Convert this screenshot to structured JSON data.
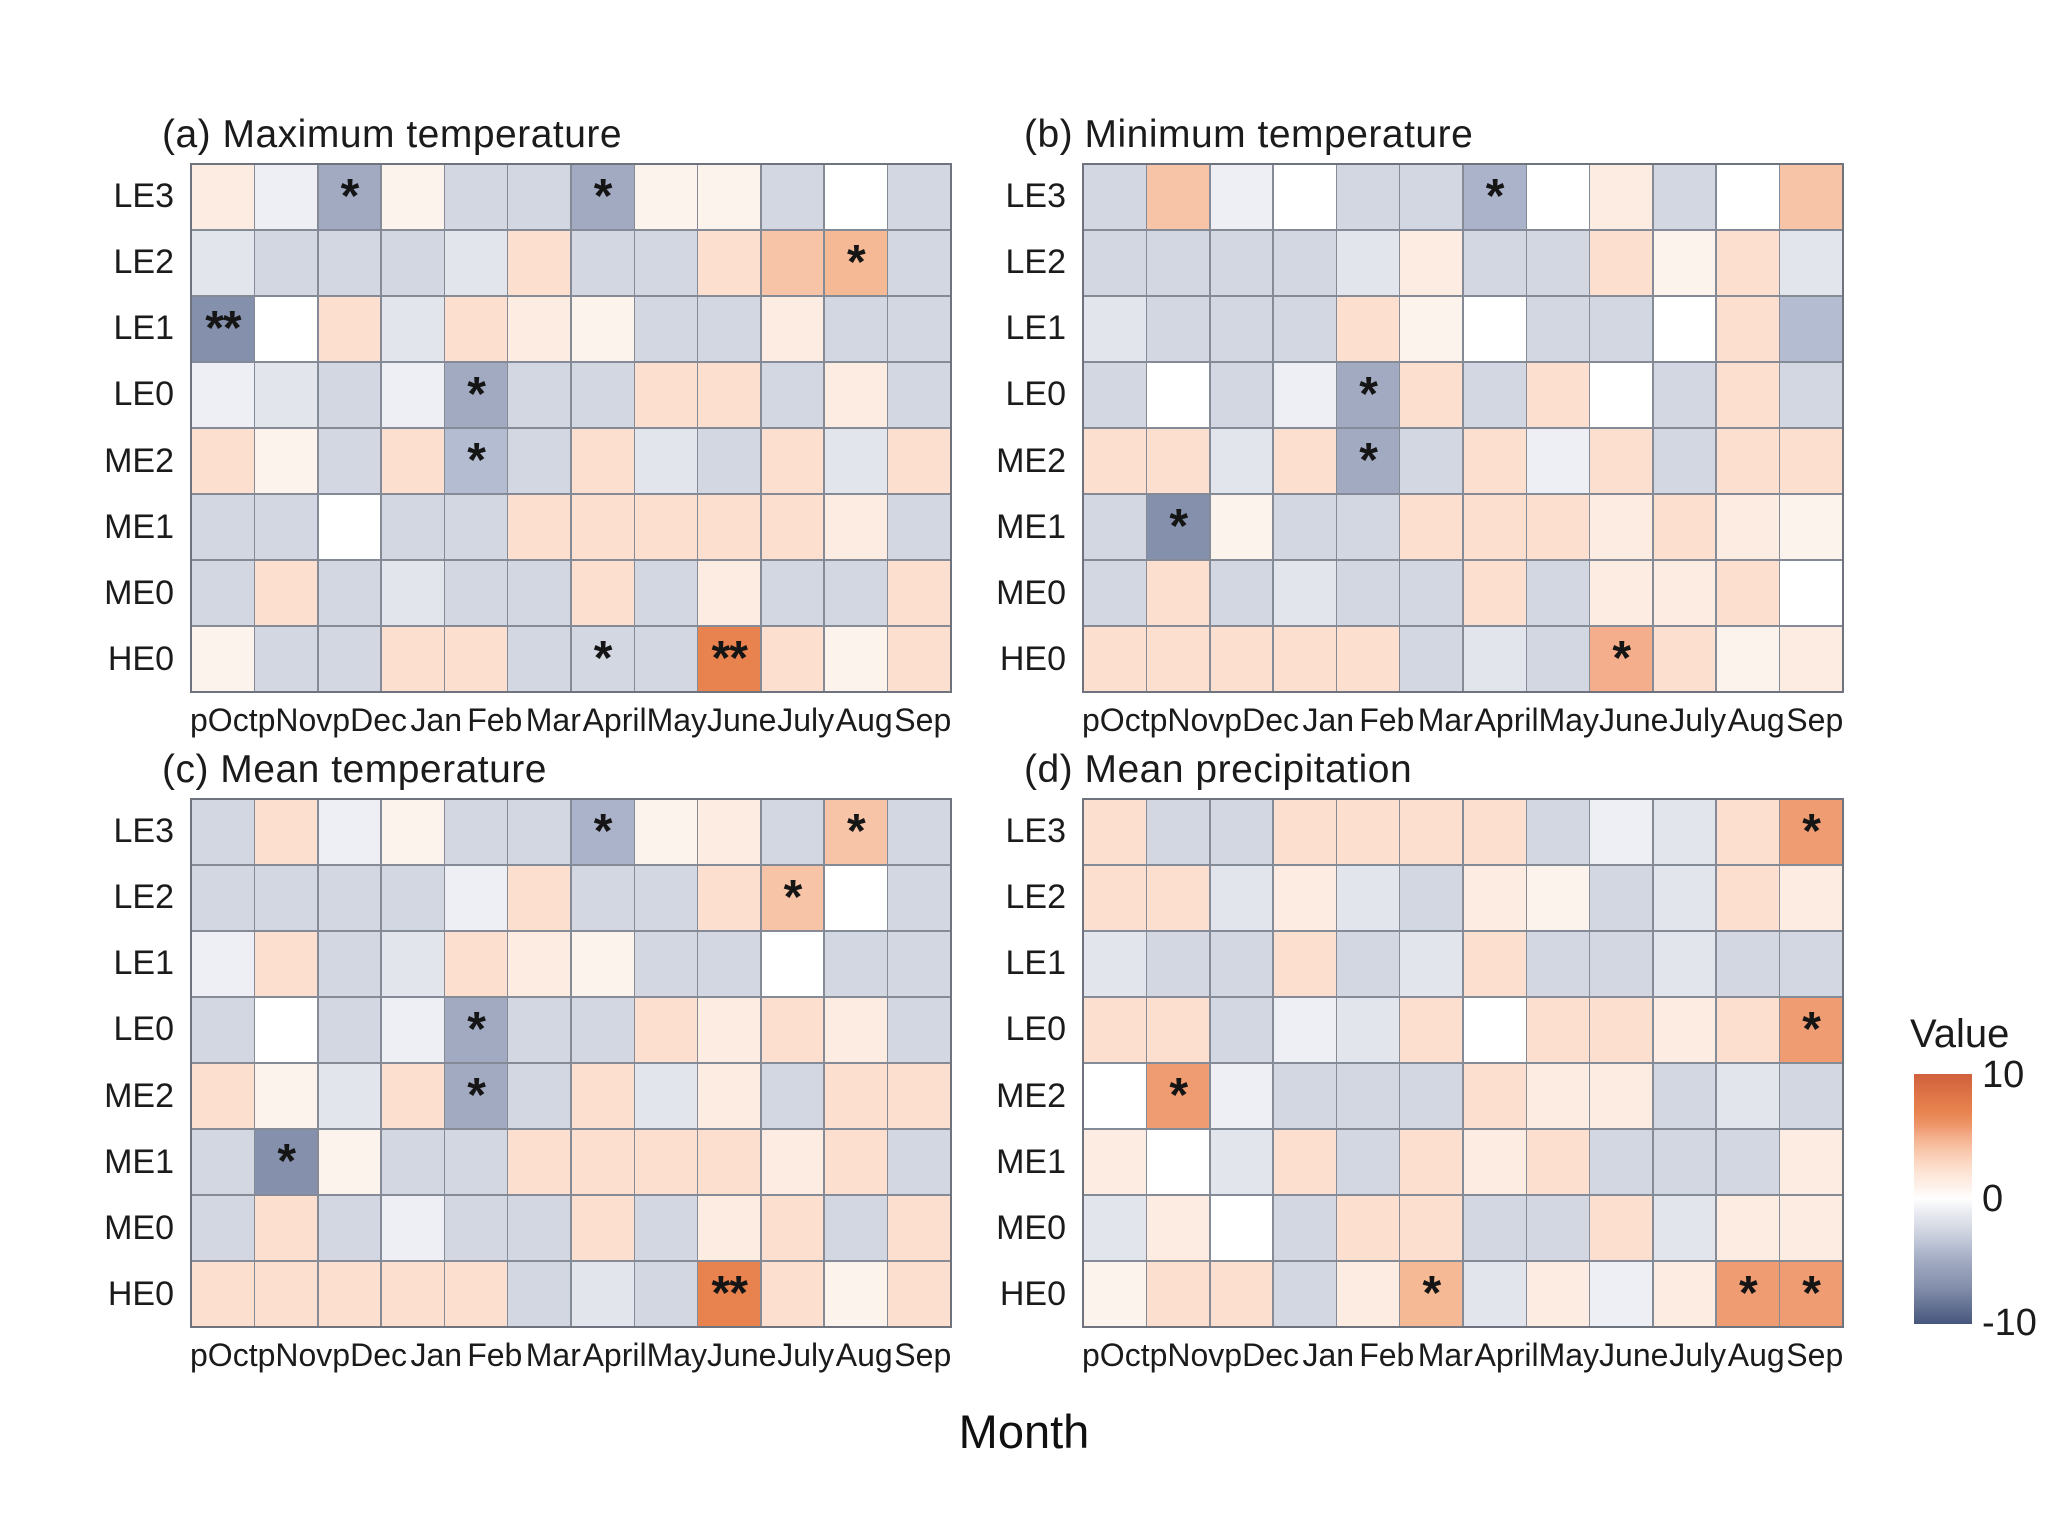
{
  "x_axis_title": "Month",
  "significance_marker_color": "#151515",
  "legend": {
    "title": "Value",
    "ticks": [
      "10",
      "0",
      "-10"
    ],
    "max_value": 10,
    "mid_value": 0,
    "min_value": -10,
    "max_color": "#d0613c",
    "mid_color": "#ffffff",
    "min_color": "#46567c",
    "colormap_anchors": [
      [
        -10,
        "#46567c"
      ],
      [
        -7,
        "#8590ac"
      ],
      [
        -5,
        "#a1aac1"
      ],
      [
        -4,
        "#b3bcd0"
      ],
      [
        -2.5,
        "#d2d7e2"
      ],
      [
        -1.5,
        "#e2e5ec"
      ],
      [
        -0.8,
        "#edeff4"
      ],
      [
        0,
        "#ffffff"
      ],
      [
        0.8,
        "#fdf3ed"
      ],
      [
        1.5,
        "#fdece2"
      ],
      [
        2.5,
        "#fcdfce"
      ],
      [
        4,
        "#f8c4a8"
      ],
      [
        4.5,
        "#f6b996"
      ],
      [
        5,
        "#f4ae8b"
      ],
      [
        5.5,
        "#f09c73"
      ],
      [
        7,
        "#e8834f"
      ],
      [
        10,
        "#d0613c"
      ]
    ]
  },
  "chart_data": [
    {
      "type": "heatmap",
      "title": "(a) Maximum temperature",
      "rows": [
        "LE3",
        "LE2",
        "LE1",
        "LE0",
        "ME2",
        "ME1",
        "ME0",
        "HE0"
      ],
      "columns": [
        "pOct",
        "pNov",
        "pDec",
        "Jan",
        "Feb",
        "Mar",
        "April",
        "May",
        "June",
        "July",
        "Aug",
        "Sep"
      ],
      "value_range": [
        -10,
        10
      ],
      "values": [
        [
          1.5,
          -0.8,
          -5,
          0.8,
          -2.5,
          -2.5,
          -5,
          0.8,
          0.8,
          -2.5,
          0,
          -2.5
        ],
        [
          -1.5,
          -2.5,
          -2.5,
          -2.5,
          -1.5,
          2.5,
          -2.5,
          -2.5,
          2.5,
          4,
          4.5,
          -2.5
        ],
        [
          -7,
          0,
          2.5,
          -1.5,
          2.5,
          1.5,
          0.8,
          -2.5,
          -2.5,
          1.5,
          -2.5,
          -2.5
        ],
        [
          -0.8,
          -1.5,
          -2.5,
          -0.8,
          -5,
          -2.5,
          -2.5,
          2.5,
          2.5,
          -2.5,
          1.5,
          -2.5
        ],
        [
          2.5,
          0.8,
          -2.5,
          2.5,
          -4,
          -2.5,
          2.5,
          -1.5,
          -2.5,
          2.5,
          -1.5,
          2.5
        ],
        [
          -2.5,
          -2.5,
          0,
          -2.5,
          -2.5,
          2.5,
          2.5,
          2.5,
          2.5,
          2.5,
          1.5,
          -2.5
        ],
        [
          -2.5,
          2.5,
          -2.5,
          -1.5,
          -2.5,
          -2.5,
          2.5,
          -2.5,
          1.5,
          -2.5,
          -2.5,
          2.5
        ],
        [
          0.8,
          -2.5,
          -2.5,
          2.5,
          2.5,
          -2.5,
          -2.5,
          -2.5,
          7,
          2.5,
          0.8,
          2.5
        ]
      ],
      "significance": [
        {
          "row": "LE3",
          "col": "pDec",
          "mark": "*"
        },
        {
          "row": "LE3",
          "col": "April",
          "mark": "*"
        },
        {
          "row": "LE2",
          "col": "Aug",
          "mark": "*"
        },
        {
          "row": "LE1",
          "col": "pOct",
          "mark": "**"
        },
        {
          "row": "LE0",
          "col": "Feb",
          "mark": "*"
        },
        {
          "row": "ME2",
          "col": "Feb",
          "mark": "*"
        },
        {
          "row": "HE0",
          "col": "April",
          "mark": "*"
        },
        {
          "row": "HE0",
          "col": "June",
          "mark": "**"
        }
      ]
    },
    {
      "type": "heatmap",
      "title": "(b) Minimum temperature",
      "rows": [
        "LE3",
        "LE2",
        "LE1",
        "LE0",
        "ME2",
        "ME1",
        "ME0",
        "HE0"
      ],
      "columns": [
        "pOct",
        "pNov",
        "pDec",
        "Jan",
        "Feb",
        "Mar",
        "April",
        "May",
        "June",
        "July",
        "Aug",
        "Sep"
      ],
      "value_range": [
        -10,
        10
      ],
      "values": [
        [
          -2.5,
          4,
          -0.8,
          0,
          -2.5,
          -2.5,
          -4.5,
          0,
          1.5,
          -2.5,
          0,
          4
        ],
        [
          -2.5,
          -2.5,
          -2.5,
          -2.5,
          -1.5,
          1.5,
          -2.5,
          -2.5,
          2.5,
          0.8,
          2.5,
          -1.5
        ],
        [
          -1.5,
          -2.5,
          -2.5,
          -2.5,
          2.5,
          0.8,
          0,
          -2.5,
          -2.5,
          0,
          2.5,
          -4
        ],
        [
          -2.5,
          0,
          -2.5,
          -0.8,
          -5,
          2.5,
          -2.5,
          2.5,
          0,
          -2.5,
          2.5,
          -2.5
        ],
        [
          2.5,
          2.5,
          -1.5,
          2.5,
          -5,
          -2.5,
          2.5,
          -0.8,
          2.5,
          -2.5,
          2.5,
          2.5
        ],
        [
          -2.5,
          -7,
          0.8,
          -2.5,
          -2.5,
          2.5,
          2.5,
          2.5,
          1.5,
          2.5,
          1.5,
          0.8
        ],
        [
          -2.5,
          2.5,
          -2.5,
          -1.5,
          -2.5,
          -2.5,
          2.5,
          -2.5,
          1.5,
          1.5,
          2.5,
          0
        ],
        [
          2.5,
          2.5,
          2.5,
          2.5,
          2.5,
          -2.5,
          -1.5,
          -2.5,
          5,
          2.5,
          0.8,
          1.5
        ]
      ],
      "significance": [
        {
          "row": "LE3",
          "col": "April",
          "mark": "*"
        },
        {
          "row": "LE0",
          "col": "Feb",
          "mark": "*"
        },
        {
          "row": "ME2",
          "col": "Feb",
          "mark": "*"
        },
        {
          "row": "ME1",
          "col": "pNov",
          "mark": "*"
        },
        {
          "row": "HE0",
          "col": "June",
          "mark": "*"
        }
      ]
    },
    {
      "type": "heatmap",
      "title": "(c) Mean temperature",
      "rows": [
        "LE3",
        "LE2",
        "LE1",
        "LE0",
        "ME2",
        "ME1",
        "ME0",
        "HE0"
      ],
      "columns": [
        "pOct",
        "pNov",
        "pDec",
        "Jan",
        "Feb",
        "Mar",
        "April",
        "May",
        "June",
        "July",
        "Aug",
        "Sep"
      ],
      "value_range": [
        -10,
        10
      ],
      "values": [
        [
          -2.5,
          2.5,
          -0.8,
          0.8,
          -2.5,
          -2.5,
          -4.5,
          0.8,
          1.5,
          -2.5,
          4,
          -2.5
        ],
        [
          -2.5,
          -2.5,
          -2.5,
          -2.5,
          -0.8,
          2.5,
          -2.5,
          -2.5,
          2.5,
          4,
          0,
          -2.5
        ],
        [
          -0.8,
          2.5,
          -2.5,
          -1.5,
          2.5,
          1.5,
          0.8,
          -2.5,
          -2.5,
          0,
          -2.5,
          -2.5
        ],
        [
          -2.5,
          0,
          -2.5,
          -0.8,
          -5,
          -2.5,
          -2.5,
          2.5,
          1.5,
          2.5,
          1.5,
          -2.5
        ],
        [
          2.5,
          0.8,
          -1.5,
          2.5,
          -5,
          -2.5,
          2.5,
          -1.5,
          1.5,
          -2.5,
          2.5,
          2.5
        ],
        [
          -2.5,
          -7,
          0.8,
          -2.5,
          -2.5,
          2.5,
          2.5,
          2.5,
          2.5,
          1.5,
          2.5,
          -2.5
        ],
        [
          -2.5,
          2.5,
          -2.5,
          -0.8,
          -2.5,
          -2.5,
          2.5,
          -2.5,
          1.5,
          2.5,
          -2.5,
          2.5
        ],
        [
          2.5,
          2.5,
          2.5,
          2.5,
          2.5,
          -2.5,
          -1.5,
          -2.5,
          7,
          2.5,
          0.8,
          2.5
        ]
      ],
      "significance": [
        {
          "row": "LE3",
          "col": "April",
          "mark": "*"
        },
        {
          "row": "LE3",
          "col": "Aug",
          "mark": "*"
        },
        {
          "row": "LE2",
          "col": "July",
          "mark": "*"
        },
        {
          "row": "LE0",
          "col": "Feb",
          "mark": "*"
        },
        {
          "row": "ME2",
          "col": "Feb",
          "mark": "*"
        },
        {
          "row": "ME1",
          "col": "pNov",
          "mark": "*"
        },
        {
          "row": "HE0",
          "col": "June",
          "mark": "**"
        }
      ]
    },
    {
      "type": "heatmap",
      "title": "(d) Mean precipitation",
      "rows": [
        "LE3",
        "LE2",
        "LE1",
        "LE0",
        "ME2",
        "ME1",
        "ME0",
        "HE0"
      ],
      "columns": [
        "pOct",
        "pNov",
        "pDec",
        "Jan",
        "Feb",
        "Mar",
        "April",
        "May",
        "June",
        "July",
        "Aug",
        "Sep"
      ],
      "value_range": [
        -10,
        10
      ],
      "values": [
        [
          2.5,
          -2.5,
          -2.5,
          2.5,
          2.5,
          2.5,
          2.5,
          -2.5,
          -0.8,
          -1.5,
          2.5,
          5.5
        ],
        [
          2.5,
          2.5,
          -1.5,
          1.5,
          -1.5,
          -2.5,
          1.5,
          0.8,
          -2.5,
          -1.5,
          2.5,
          1.5
        ],
        [
          -1.5,
          -2.5,
          -2.5,
          2.5,
          -2.5,
          -1.5,
          2.5,
          -2.5,
          -2.5,
          -1.5,
          -2.5,
          -2.5
        ],
        [
          2.5,
          2.5,
          -2.5,
          -0.8,
          -1.5,
          2.5,
          0,
          2.5,
          2.5,
          1.5,
          2.5,
          5.5
        ],
        [
          0,
          5.5,
          -0.8,
          -2.5,
          -2.5,
          -2.5,
          2.5,
          1.5,
          1.5,
          -2.5,
          -1.5,
          -2.5
        ],
        [
          1.5,
          0,
          -1.5,
          2.5,
          -2.5,
          2.5,
          1.5,
          2.5,
          -2.5,
          -2.5,
          -2.5,
          1.5
        ],
        [
          -1.5,
          1.5,
          0,
          -2.5,
          2.5,
          2.5,
          -2.5,
          -2.5,
          2.5,
          -1.5,
          1.5,
          1.5
        ],
        [
          0.8,
          2.5,
          2.5,
          -2.5,
          1.5,
          4.5,
          -1.5,
          1.5,
          -0.8,
          1.5,
          5.5,
          5.5
        ]
      ],
      "significance": [
        {
          "row": "LE3",
          "col": "Sep",
          "mark": "*"
        },
        {
          "row": "LE0",
          "col": "Sep",
          "mark": "*"
        },
        {
          "row": "ME2",
          "col": "pNov",
          "mark": "*"
        },
        {
          "row": "HE0",
          "col": "Mar",
          "mark": "*"
        },
        {
          "row": "HE0",
          "col": "Aug",
          "mark": "*"
        },
        {
          "row": "HE0",
          "col": "Sep",
          "mark": "*"
        }
      ]
    }
  ]
}
